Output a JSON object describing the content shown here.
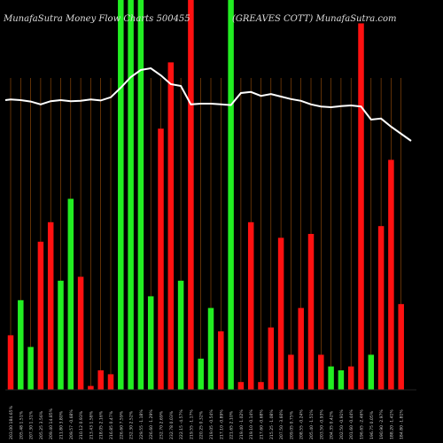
{
  "header": {
    "left": "MunafaSutra  Money Flow  Charts 500455",
    "right": "(GREAVES COTT) MunafaSutra.com"
  },
  "colors": {
    "background": "#000000",
    "green": "#22ee22",
    "red": "#ff1111",
    "line": "#ffffff",
    "grid": "#a0520a",
    "label": "#cccccc"
  },
  "chart_data": {
    "type": "bar",
    "title": "MunafaSutra  Money Flow  Charts 500455",
    "subtitle": "(GREAVES COTT) MunafaSutra.com",
    "grid": "vertical",
    "bars": [
      {
        "label": "203.00 184.65%",
        "value": 14,
        "color": "red"
      },
      {
        "label": "205.48 1.51%",
        "value": 23,
        "color": "green"
      },
      {
        "label": "207.30 1.31%",
        "value": 11,
        "color": "green"
      },
      {
        "label": "205.25 3.56%",
        "value": 38,
        "color": "red"
      },
      {
        "label": "209.40 14.85%",
        "value": 43,
        "color": "red"
      },
      {
        "label": "211.80 3.80%",
        "value": 28,
        "color": "green"
      },
      {
        "label": "209.57 -0.68%",
        "value": 49,
        "color": "green"
      },
      {
        "label": "210.12 0.93%",
        "value": 29,
        "color": "red"
      },
      {
        "label": "213.43 1.58%",
        "value": 1,
        "color": "red"
      },
      {
        "label": "218.05 2.16%",
        "value": 5,
        "color": "red"
      },
      {
        "label": "216.85 0.47%",
        "value": 4,
        "color": "red"
      },
      {
        "label": "226.60 7.59%",
        "value": 100,
        "color": "green"
      },
      {
        "label": "232.30 2.52%",
        "value": 100,
        "color": "green"
      },
      {
        "label": "229.55 -1.18%",
        "value": 100,
        "color": "green"
      },
      {
        "label": "226.60 -1.29%",
        "value": 24,
        "color": "green"
      },
      {
        "label": "232.70 2.69%",
        "value": 67,
        "color": "red"
      },
      {
        "label": "232.78 0.03%",
        "value": 84,
        "color": "red"
      },
      {
        "label": "222.15 -4.57%",
        "value": 28,
        "color": "green"
      },
      {
        "label": "219.55 -1.17%",
        "value": 100,
        "color": "red"
      },
      {
        "label": "220.25 0.32%",
        "value": 8,
        "color": "green"
      },
      {
        "label": "219.05 -0.54%",
        "value": 21,
        "color": "green"
      },
      {
        "label": "217.10 -0.89%",
        "value": 15,
        "color": "red"
      },
      {
        "label": "221.65 2.10%",
        "value": 100,
        "color": "green"
      },
      {
        "label": "219.40 -1.02%",
        "value": 2,
        "color": "red"
      },
      {
        "label": "219.10 -0.14%",
        "value": 43,
        "color": "red"
      },
      {
        "label": "217.60 -0.68%",
        "value": 2,
        "color": "red"
      },
      {
        "label": "215.25 -1.08%",
        "value": 16,
        "color": "red"
      },
      {
        "label": "207.50 -3.60%",
        "value": 39,
        "color": "red"
      },
      {
        "label": "209.05 0.75%",
        "value": 9,
        "color": "red"
      },
      {
        "label": "208.55 -0.24%",
        "value": 21,
        "color": "red"
      },
      {
        "label": "205.40 -1.51%",
        "value": 40,
        "color": "red"
      },
      {
        "label": "203.50 -0.93%",
        "value": 9,
        "color": "red"
      },
      {
        "label": "204.35 0.42%",
        "value": 6,
        "color": "green"
      },
      {
        "label": "202.50 -0.91%",
        "value": 5,
        "color": "green"
      },
      {
        "label": "201.60 -0.44%",
        "value": 6,
        "color": "red"
      },
      {
        "label": "196.65 -2.46%",
        "value": 94,
        "color": "red"
      },
      {
        "label": "196.75 0.05%",
        "value": 9,
        "color": "green"
      },
      {
        "label": "190.90 -2.97%",
        "value": 42,
        "color": "red"
      },
      {
        "label": "188.20 -1.41%",
        "value": 59,
        "color": "red"
      },
      {
        "label": "184.80 -1.81%",
        "value": 22,
        "color": "red"
      }
    ],
    "price_line": [
      1.0,
      1.02,
      1.0,
      0.96,
      0.88,
      0.97,
      1.0,
      0.97,
      0.98,
      1.02,
      0.99,
      1.08,
      1.35,
      1.65,
      1.85,
      1.9,
      1.7,
      1.45,
      1.4,
      0.88,
      0.9,
      0.9,
      0.88,
      0.86,
      1.2,
      1.23,
      1.12,
      1.17,
      1.1,
      1.03,
      0.98,
      0.88,
      0.82,
      0.8,
      0.83,
      0.85,
      0.82,
      0.45,
      0.48,
      0.25,
      0.05,
      -0.15
    ]
  }
}
